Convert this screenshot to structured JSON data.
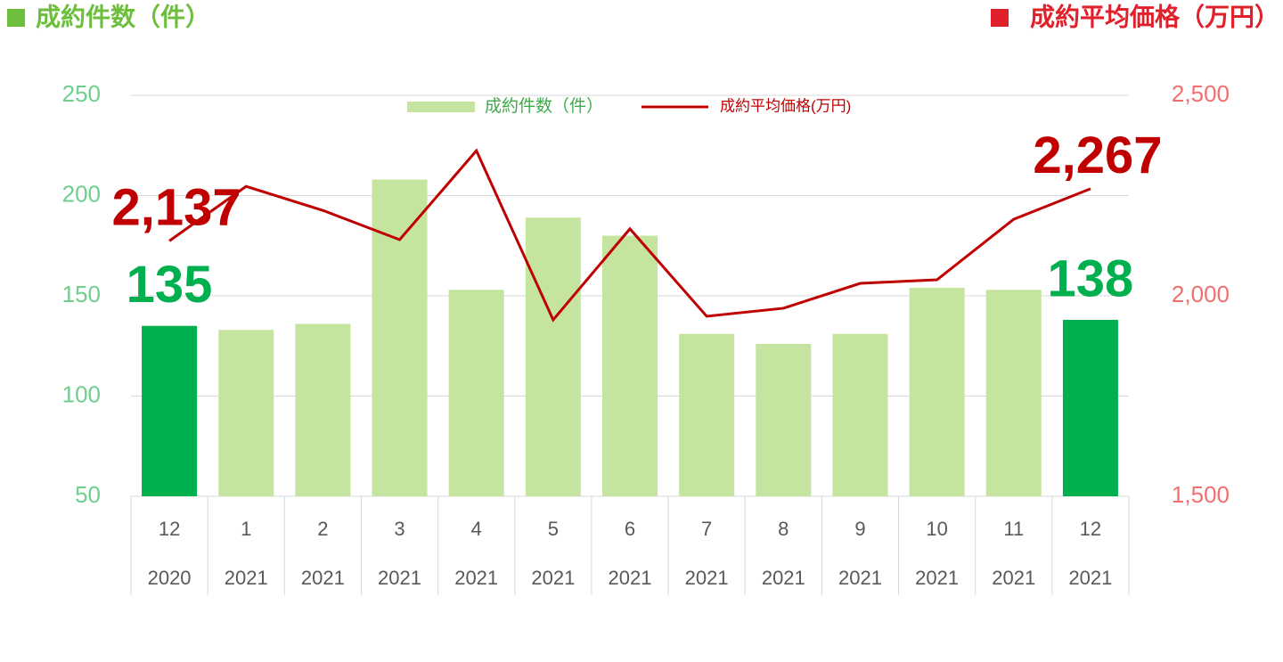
{
  "chart_data": {
    "type": "bar-line",
    "y_label": "成約件数（件）",
    "y2_label": "成約平均価格（万円）",
    "categories": [
      [
        "12",
        "2020"
      ],
      [
        "1",
        "2021"
      ],
      [
        "2",
        "2021"
      ],
      [
        "3",
        "2021"
      ],
      [
        "4",
        "2021"
      ],
      [
        "5",
        "2021"
      ],
      [
        "6",
        "2021"
      ],
      [
        "7",
        "2021"
      ],
      [
        "8",
        "2021"
      ],
      [
        "9",
        "2021"
      ],
      [
        "10",
        "2021"
      ],
      [
        "11",
        "2021"
      ],
      [
        "12",
        "2021"
      ]
    ],
    "ylim": [
      50,
      250
    ],
    "yticks": [
      50,
      100,
      150,
      200,
      250
    ],
    "y2lim": [
      1500,
      2500
    ],
    "y2ticks": [
      {
        "value": 1500,
        "label": "1,500"
      },
      {
        "value": 2000,
        "label": "2,000"
      },
      {
        "value": 2500,
        "label": "2,500"
      }
    ],
    "grid": true,
    "series": [
      {
        "name": "成約件数（件）",
        "type": "bar",
        "color": "#c5e4a0",
        "highlight_color": "#00b04f",
        "values": [
          135,
          133,
          136,
          208,
          153,
          189,
          180,
          131,
          126,
          131,
          154,
          153,
          138
        ],
        "value_labels": [
          "135",
          null,
          null,
          null,
          null,
          null,
          null,
          null,
          null,
          null,
          null,
          null,
          "138"
        ]
      },
      {
        "name": "成約平均価格(万円)",
        "type": "line",
        "axis": "y2",
        "color": "#c00000",
        "values": [
          2137,
          2273,
          2213,
          2140,
          2362,
          1940,
          2167,
          1949,
          1969,
          2031,
          2040,
          2191,
          2267
        ],
        "value_labels": [
          "2,137",
          null,
          null,
          null,
          null,
          null,
          null,
          null,
          null,
          null,
          null,
          null,
          "2,267"
        ]
      }
    ]
  }
}
